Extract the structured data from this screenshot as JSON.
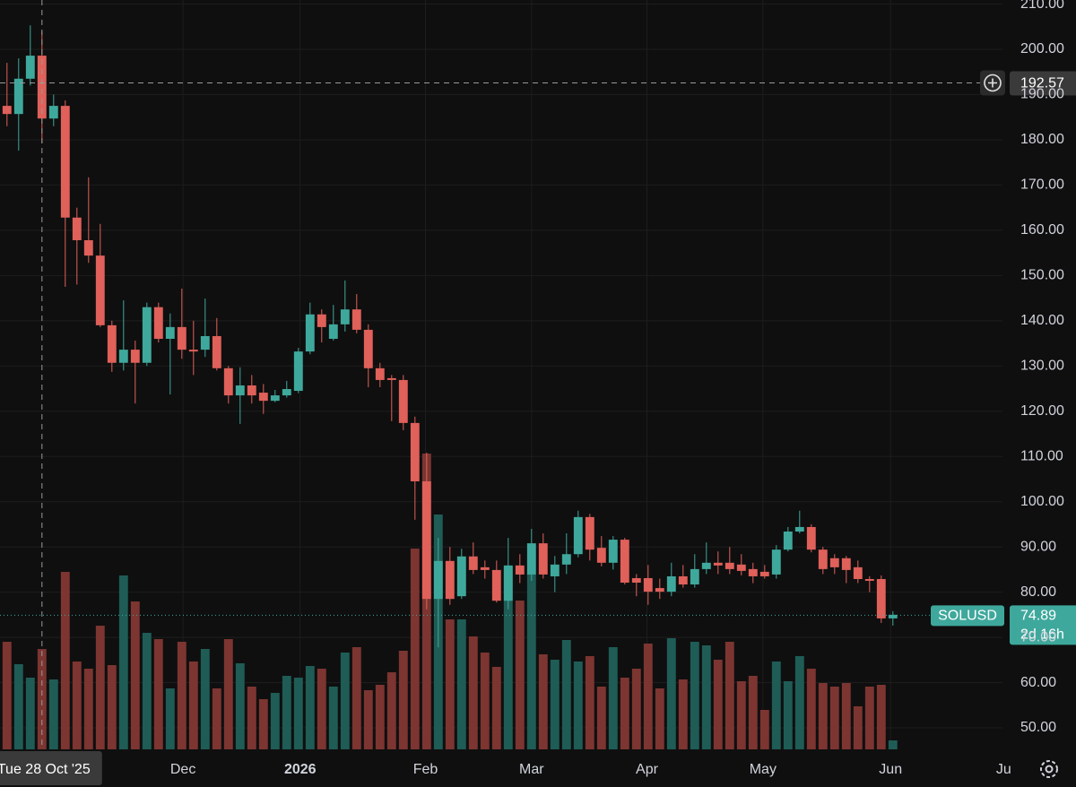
{
  "chart_data": {
    "type": "candlestick",
    "symbol": "SOLUSD",
    "countdown": "2d 16h",
    "x": [
      0,
      1,
      2,
      3,
      4,
      5,
      6,
      7,
      8,
      9,
      10,
      11,
      12,
      13,
      14,
      15,
      16,
      17,
      18,
      19,
      20,
      21,
      22,
      23,
      24,
      25,
      26,
      27,
      28,
      29,
      30,
      31,
      32,
      33,
      34,
      35,
      36,
      37,
      38,
      39,
      40,
      41,
      42,
      43,
      44,
      45,
      46,
      47,
      48,
      49,
      50,
      51,
      52,
      53,
      54,
      55,
      56,
      57,
      58,
      59,
      60,
      61,
      62,
      63,
      64,
      65,
      66,
      67,
      68,
      69,
      70,
      71,
      72,
      73,
      74,
      75,
      76
    ],
    "open": [
      187.5,
      185.7,
      193.5,
      198.6,
      184.7,
      187.5,
      162.8,
      157.8,
      154.4,
      139,
      130.7,
      133.6,
      130.7,
      143,
      136,
      138.6,
      133.6,
      133.6,
      136.6,
      129.5,
      123.5,
      125.7,
      124.1,
      122.3,
      123.5,
      124.5,
      133.2,
      141.4,
      136,
      139.2,
      142.5,
      138,
      129.5,
      127.3,
      126.9,
      117.4,
      104.5,
      78.5,
      86.9,
      79.1,
      87.9,
      85.5,
      84.9,
      78.1,
      85.9,
      83.9,
      90.8,
      83.5,
      86.1,
      88.4,
      96.6,
      89.8,
      86.5,
      91.6,
      83.1,
      83.1,
      80.9,
      80.1,
      83.5,
      81.7,
      85.1,
      86.5,
      86.5,
      86.1,
      85.1,
      84.5,
      83.9,
      89.4,
      93.4,
      94.4,
      89.4,
      87.5,
      87.5,
      85.5,
      82.9,
      82.9,
      74.2
    ],
    "high": [
      197,
      198,
      205.3,
      204,
      190,
      188.7,
      165,
      171.7,
      161.4,
      140,
      144.5,
      135.6,
      144,
      144,
      141.6,
      147.1,
      140,
      144.9,
      140.6,
      130,
      129.7,
      128,
      126,
      124.7,
      126.7,
      134,
      144,
      142.5,
      143.5,
      148.9,
      145.9,
      139.2,
      130.7,
      128,
      128,
      118.8,
      110.8,
      92,
      90,
      89.6,
      91,
      87,
      87,
      92,
      88.4,
      94,
      93,
      88,
      93,
      98,
      97.3,
      92.4,
      92.4,
      92,
      84,
      86,
      83,
      86.5,
      86,
      88.4,
      91,
      89,
      90,
      88.4,
      86.5,
      86,
      90.4,
      94.4,
      98,
      95,
      90,
      88.4,
      88,
      87,
      83.5,
      83.7,
      75.8
    ],
    "low": [
      183,
      177.6,
      192,
      179.2,
      183,
      147.5,
      148,
      152.8,
      138.6,
      128.7,
      129,
      121.7,
      130,
      135.2,
      123.7,
      131.6,
      128,
      132,
      129,
      121.7,
      117.2,
      121.7,
      119.4,
      122,
      123,
      124,
      132.6,
      135.2,
      135.6,
      137.6,
      137.2,
      125.3,
      125.3,
      117.8,
      115.8,
      96,
      76.2,
      67.8,
      77.2,
      78.5,
      84,
      83,
      77.7,
      76.2,
      82,
      82.5,
      83,
      80,
      84,
      87.7,
      87,
      85.7,
      85,
      81.7,
      79.1,
      77.2,
      78.5,
      79.1,
      81,
      81,
      84,
      84,
      84,
      83.7,
      82,
      83,
      83,
      89,
      93,
      88.8,
      84,
      84,
      82,
      82,
      80,
      73.2,
      72.6
    ],
    "close": [
      185.7,
      193.5,
      198.6,
      184.7,
      187.5,
      162.8,
      157.8,
      154.4,
      139,
      130.7,
      133.6,
      130.7,
      143,
      136,
      138.6,
      133.6,
      133.2,
      136.6,
      129.5,
      123.5,
      125.7,
      123.5,
      122.3,
      123.5,
      124.9,
      133.2,
      141.4,
      138.6,
      139.2,
      142.5,
      138,
      129.5,
      126.9,
      126.9,
      117.4,
      104.5,
      78.5,
      86.9,
      78.5,
      87.9,
      84.9,
      84.9,
      78.1,
      85.9,
      83.9,
      90.8,
      83.9,
      86.1,
      88.4,
      96.6,
      89.4,
      86.5,
      91.6,
      82.1,
      82.1,
      80.1,
      80.1,
      83.5,
      81.7,
      85.1,
      86.5,
      85.9,
      85.1,
      84.7,
      83.5,
      83.5,
      89.4,
      93.4,
      94.4,
      89.4,
      85.1,
      85.5,
      84.9,
      82.9,
      82.5,
      74.2,
      75
    ],
    "volume": [
      120,
      95,
      80,
      112,
      78,
      198,
      98,
      90,
      138,
      94,
      194,
      165,
      130,
      123,
      68,
      120,
      98,
      112,
      68,
      123,
      96,
      70,
      56,
      63,
      82,
      80,
      93,
      90,
      70,
      108,
      114,
      66,
      72,
      86,
      110,
      224,
      330,
      262,
      145,
      145,
      126,
      108,
      92,
      204,
      166,
      196,
      106,
      100,
      122,
      98,
      104,
      70,
      114,
      80,
      90,
      118,
      68,
      124,
      78,
      120,
      116,
      100,
      120,
      76,
      82,
      44,
      98,
      76,
      104,
      90,
      74,
      70,
      74,
      48,
      70,
      72,
      10
    ],
    "volume_lim": [
      0,
      400
    ],
    "xlim": [
      -0.6,
      85.4
    ],
    "ylim": [
      45.25,
      210.9
    ],
    "xticks": [
      {
        "value": 15.1,
        "label": "Dec"
      },
      {
        "value": 25.15,
        "label": "2026"
      },
      {
        "value": 35.9,
        "label": "Feb"
      },
      {
        "value": 45,
        "label": "Mar"
      },
      {
        "value": 54.9,
        "label": "Apr"
      },
      {
        "value": 64.85,
        "label": "May"
      },
      {
        "value": 75.8,
        "label": "Jun"
      },
      {
        "value": 85.5,
        "label": "Ju"
      }
    ],
    "yticks": [
      {
        "value": 50,
        "label": "50.00"
      },
      {
        "value": 60,
        "label": "60.00"
      },
      {
        "value": 70,
        "label": "70.00"
      },
      {
        "value": 80,
        "label": "80.00"
      },
      {
        "value": 90,
        "label": "90.00"
      },
      {
        "value": 100,
        "label": "100.00"
      },
      {
        "value": 110,
        "label": "110.00"
      },
      {
        "value": 120,
        "label": "120.00"
      },
      {
        "value": 130,
        "label": "130.00"
      },
      {
        "value": 140,
        "label": "140.00"
      },
      {
        "value": 150,
        "label": "150.00"
      },
      {
        "value": 160,
        "label": "160.00"
      },
      {
        "value": 170,
        "label": "170.00"
      },
      {
        "value": 180,
        "label": "180.00"
      },
      {
        "value": 190,
        "label": "190.00"
      },
      {
        "value": 200,
        "label": "200.00"
      },
      {
        "value": 210,
        "label": "210.00"
      }
    ],
    "grid": true,
    "up_color": "#3fa89c",
    "down_color": "#e0605a",
    "volume_up_color": "#1f5c56",
    "volume_down_color": "#7c3531",
    "last_price": 74.89,
    "crosshair": {
      "x": 3,
      "y": 192.57,
      "x_label": "Tue 28 Oct '25"
    }
  }
}
